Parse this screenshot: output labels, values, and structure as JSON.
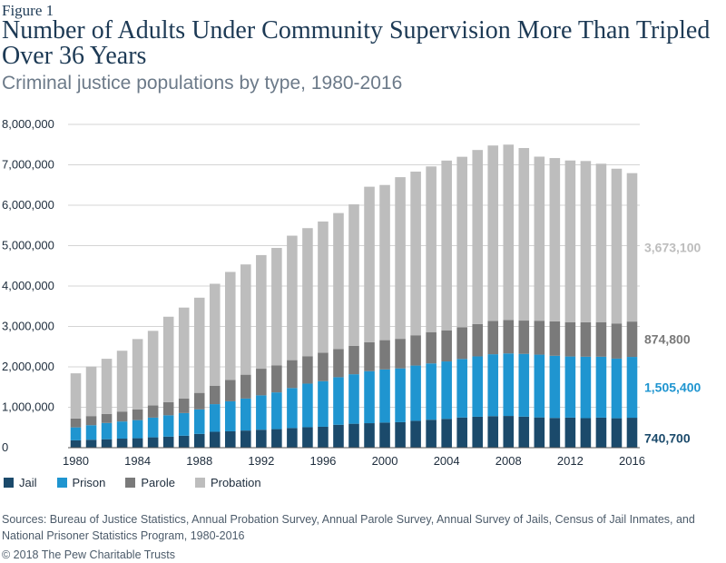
{
  "figure_label": "Figure 1",
  "title": "Number of Adults Under Community Supervision More Than Tripled Over 36 Years",
  "subtitle": "Criminal justice populations by type, 1980-2016",
  "sources": "Sources: Bureau of Justice Statistics, Annual Probation Survey, Annual Parole Survey, Annual Survey of Jails, Census of Jail Inmates, and National Prisoner Statistics Program, 1980-2016",
  "copyright": "© 2018 The Pew Charitable Trusts",
  "colors": {
    "jail": "#1b4a6b",
    "prison": "#1f95d0",
    "parole": "#7a7a7a",
    "probation": "#bdbdbd"
  },
  "chart_data": {
    "type": "bar",
    "stacked": true,
    "x": [
      1980,
      1981,
      1982,
      1983,
      1984,
      1985,
      1986,
      1987,
      1988,
      1989,
      1990,
      1991,
      1992,
      1993,
      1994,
      1995,
      1996,
      1997,
      1998,
      1999,
      2000,
      2001,
      2002,
      2003,
      2004,
      2005,
      2006,
      2007,
      2008,
      2009,
      2010,
      2011,
      2012,
      2013,
      2014,
      2015,
      2016
    ],
    "x_tick_labels": [
      "1980",
      "1984",
      "1988",
      "1992",
      "1996",
      "2000",
      "2004",
      "2008",
      "2012",
      "2016"
    ],
    "ylim": [
      0,
      8000000
    ],
    "y_tick_labels": [
      "0",
      "1,000,000",
      "2,000,000",
      "3,000,000",
      "4,000,000",
      "5,000,000",
      "6,000,000",
      "7,000,000",
      "8,000,000"
    ],
    "y_ticks": [
      0,
      1000000,
      2000000,
      3000000,
      4000000,
      5000000,
      6000000,
      7000000,
      8000000
    ],
    "grid": "horizontal",
    "legend_position": "bottom-left",
    "series": [
      {
        "name": "Jail",
        "color_key": "jail",
        "values": [
          182000,
          196000,
          209000,
          224000,
          234000,
          256000,
          274000,
          296000,
          341000,
          394000,
          405000,
          424000,
          444000,
          459000,
          486000,
          507000,
          518000,
          567000,
          592000,
          606000,
          621000,
          631000,
          665000,
          691000,
          713000,
          747000,
          766000,
          780000,
          785000,
          768000,
          749000,
          736000,
          744000,
          731000,
          744000,
          728000,
          740700
        ]
      },
      {
        "name": "Prison",
        "color_key": "prison",
        "values": [
          320000,
          360000,
          403000,
          424000,
          448000,
          488000,
          527000,
          561000,
          607000,
          683000,
          743000,
          792000,
          851000,
          909000,
          990000,
          1078000,
          1128000,
          1177000,
          1225000,
          1288000,
          1316000,
          1331000,
          1367000,
          1394000,
          1421000,
          1448000,
          1493000,
          1532000,
          1547000,
          1553000,
          1553000,
          1538000,
          1512000,
          1520000,
          1507000,
          1476000,
          1505400
        ]
      },
      {
        "name": "Parole",
        "color_key": "parole",
        "values": [
          220000,
          226000,
          224000,
          246000,
          266000,
          300000,
          326000,
          362000,
          408000,
          457000,
          531000,
          590000,
          659000,
          671000,
          690000,
          679000,
          705000,
          695000,
          705000,
          714000,
          724000,
          732000,
          750000,
          775000,
          771000,
          784000,
          798000,
          826000,
          828000,
          824000,
          840000,
          853000,
          851000,
          853000,
          856000,
          870000,
          874800
        ]
      },
      {
        "name": "Probation",
        "color_key": "probation",
        "values": [
          1118000,
          1226000,
          1364000,
          1505000,
          1740000,
          1847000,
          2114000,
          2248000,
          2356000,
          2522000,
          2670000,
          2729000,
          2812000,
          2904000,
          3080000,
          3169000,
          3246000,
          3367000,
          3500000,
          3850000,
          3840000,
          4000000,
          4050000,
          4100000,
          4200000,
          4220000,
          4310000,
          4340000,
          4340000,
          4270000,
          4060000,
          4040000,
          4000000,
          3990000,
          3920000,
          3830000,
          3673100
        ]
      }
    ],
    "end_labels": [
      {
        "series": "Probation",
        "text": "3,673,100",
        "color_key": "probation"
      },
      {
        "series": "Parole",
        "text": "874,800",
        "color_key": "parole"
      },
      {
        "series": "Prison",
        "text": "1,505,400",
        "color_key": "prison"
      },
      {
        "series": "Jail",
        "text": "740,700",
        "color_key": "jail"
      }
    ]
  }
}
